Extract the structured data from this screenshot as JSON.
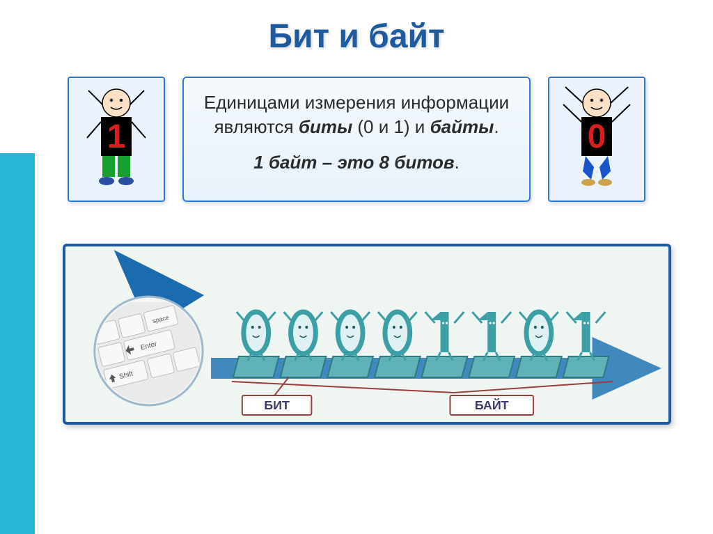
{
  "title": "Бит и байт",
  "colors": {
    "title": "#1e5a9e",
    "border": "#2a7bd0",
    "panel_bg_from": "#f4f9fd",
    "panel_bg_to": "#e8f2fa",
    "sidebar": "#29b6d6",
    "char_bg": "#eaf3fb",
    "bottom_border": "#1e5a9e",
    "bottom_bg": "#eff5f0",
    "digit_red": "#d91e1e",
    "digit_bg": "#000000",
    "skin": "#fde0c6",
    "blue_pants": "#1756c9",
    "green_pants": "#17a02b",
    "arrow_fill": "#2c7db8",
    "tile_fill": "#5fb3b8",
    "tile_stroke": "#2d7a7f",
    "bit_char": "#3d9fa6",
    "label_stroke": "#9a3f3f",
    "label_text": "#3a3a6a",
    "keyboard_key": "#f0f0f0",
    "keyboard_edge": "#bdbdbd",
    "keyboard_text": "#444444"
  },
  "info": {
    "l1a": "Единицами измерения информации являются ",
    "l1b": "биты",
    "l1c": " (0 и 1) и ",
    "l1d": "байты",
    "l1e": ".",
    "l2a": "1 байт – это 8 битов",
    "l2b": "."
  },
  "bits_sequence": [
    "0",
    "0",
    "0",
    "0",
    "1",
    "1",
    "0",
    "1"
  ],
  "labels": {
    "bit": "БИТ",
    "byte": "БАЙТ"
  },
  "characters": {
    "left_digit": "1",
    "right_digit": "0"
  },
  "keyboard_hint": {
    "enter": "Enter",
    "shift": "Shift",
    "space": "space"
  }
}
